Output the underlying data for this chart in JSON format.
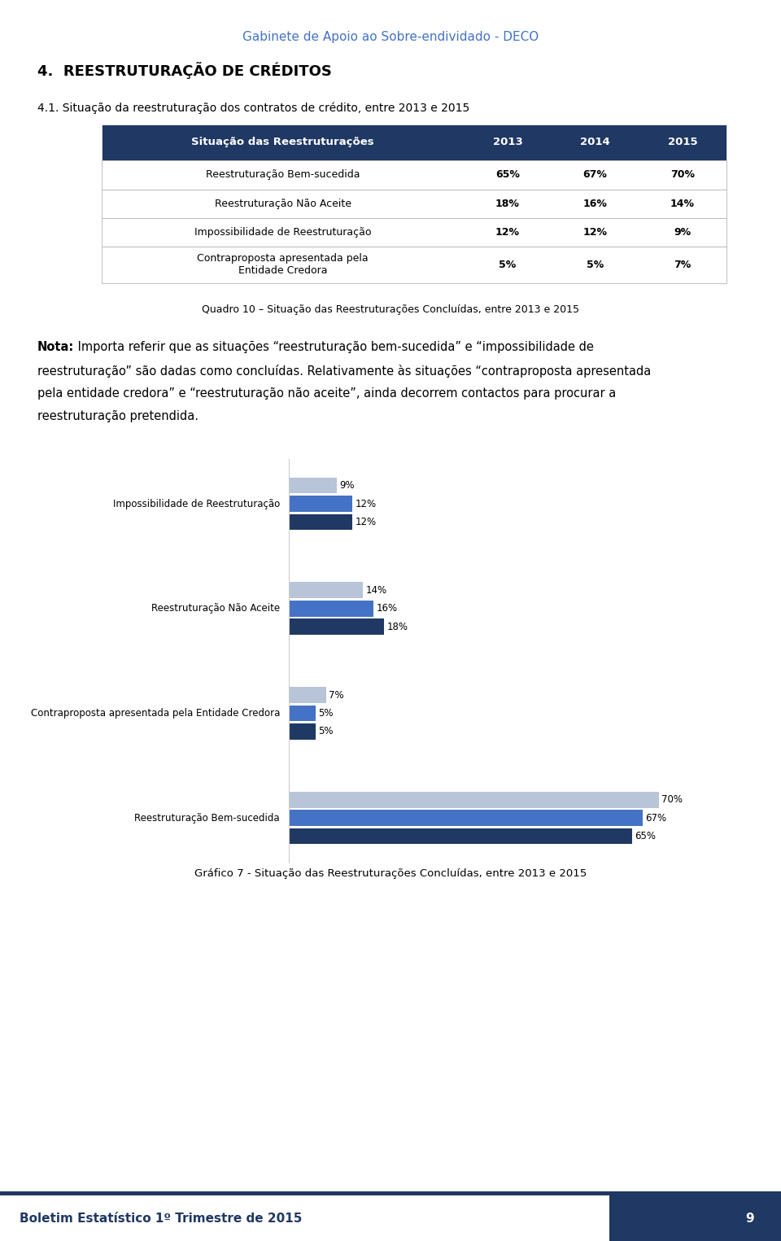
{
  "page_title": "Gabinete de Apoio ao Sobre-endividado - DECO",
  "page_title_color": "#4472C4",
  "section_title": "4.  REESTRUTURAÇÃO DE CRÉDITOS",
  "subsection_title": "4.1. Situação da reestruturação dos contratos de crédito, entre 2013 e 2015",
  "table_header": [
    "Situação das Reestruturações",
    "2013",
    "2014",
    "2015"
  ],
  "table_header_bg": "#1F3864",
  "table_header_color": "#FFFFFF",
  "table_rows": [
    [
      "Reestruturação Bem-sucedida",
      "65%",
      "67%",
      "70%"
    ],
    [
      "Reestruturação Não Aceite",
      "18%",
      "16%",
      "14%"
    ],
    [
      "Impossibilidade de Reestruturação",
      "12%",
      "12%",
      "9%"
    ],
    [
      "Contraproposta apresentada pela\nEntidade Credora",
      "5%",
      "5%",
      "7%"
    ]
  ],
  "table_caption": "Quadro 10 – Situação das Reestruturações Concluídas, entre 2013 e 2015",
  "nota_bold": "Nota:",
  "nota_line1": " Importa referir que as situações “reestruturação bem-sucedida” e “impossibilidade de",
  "nota_line2": "reestruturação” são dadas como concluídas. Relativamente às situações “contraproposta apresentada",
  "nota_line3": "pela entidade credora” e “reestruturação não aceite”, ainda decorrem contactos para procurar a",
  "nota_line4": "reestruturação pretendida.",
  "chart_categories_display": [
    "Impossibilidade de Reestruturação",
    "Reestruturação Não Aceite",
    "Contraproposta apresentada pela Entidade Credora",
    "Reestruturação Bem-sucedida"
  ],
  "chart_data_by_category": {
    "Impossibilidade de Reestruturação": {
      "2015": 9,
      "2014": 12,
      "2013": 12
    },
    "Reestruturação Não Aceite": {
      "2015": 14,
      "2014": 16,
      "2013": 18
    },
    "Contraproposta apresentada pela Entidade Credora": {
      "2015": 7,
      "2014": 5,
      "2013": 5
    },
    "Reestruturação Bem-sucedida": {
      "2015": 70,
      "2014": 67,
      "2013": 65
    }
  },
  "bar_colors": {
    "2015": "#B8C4D8",
    "2014": "#4472C4",
    "2013": "#1F3864"
  },
  "chart_caption": "Gráfico 7 - Situação das Reestruturações Concluídas, entre 2013 e 2015",
  "footer_text": "Boletim Estatístico 1º Trimestre de 2015",
  "footer_text_color": "#1F3864",
  "footer_bg_right": "#1F3864",
  "footer_page": "9",
  "bg_color": "#FFFFFF"
}
